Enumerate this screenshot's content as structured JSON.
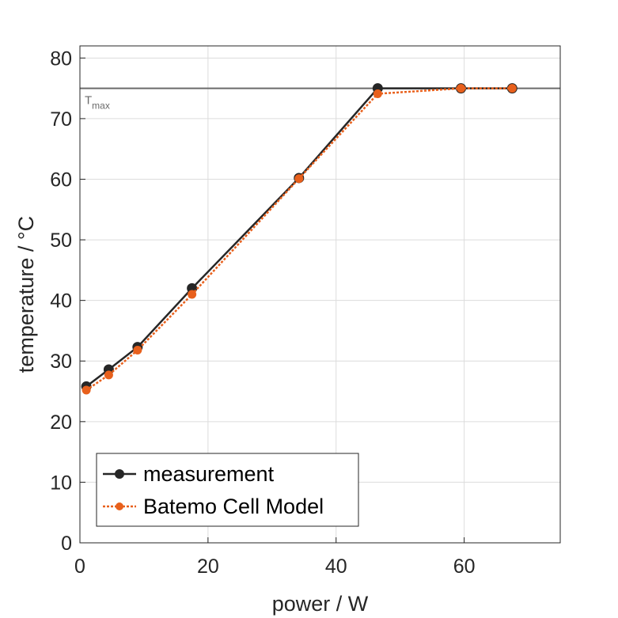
{
  "chart_data": {
    "type": "line",
    "xlabel": "power / W",
    "ylabel": "temperature / °C",
    "xlim": [
      0,
      75
    ],
    "ylim": [
      0,
      82
    ],
    "x_ticks": [
      0,
      20,
      40,
      60
    ],
    "y_ticks": [
      0,
      10,
      20,
      30,
      40,
      50,
      60,
      70,
      80
    ],
    "grid": true,
    "legend_position": "bottom-left",
    "reference_line": {
      "y": 75,
      "label": "T",
      "label_sub": "max",
      "color": "#6b6b6b"
    },
    "series": [
      {
        "name": "measurement",
        "color": "#262626",
        "style": "solid",
        "x": [
          1,
          4.5,
          9,
          17.5,
          34.2,
          46.5,
          59.5,
          67.5
        ],
        "y": [
          25.8,
          28.6,
          32.3,
          42,
          60.2,
          75,
          75,
          75
        ]
      },
      {
        "name": "Batemo Cell Model",
        "color": "#e8601c",
        "style": "dotted",
        "x": [
          1,
          4.5,
          9,
          17.5,
          34.2,
          46.5,
          59.5,
          67.5
        ],
        "y": [
          25.2,
          27.7,
          31.8,
          41,
          60.1,
          74.1,
          75,
          75
        ]
      }
    ]
  }
}
